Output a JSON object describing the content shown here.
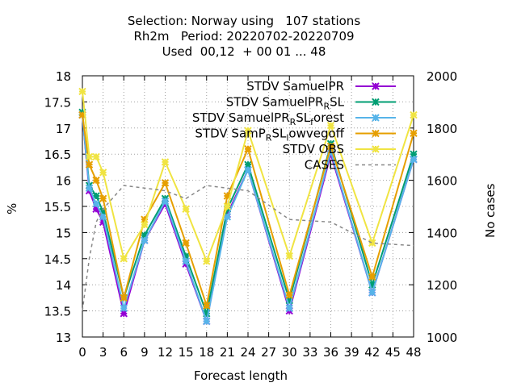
{
  "title_lines": [
    "Selection: Norway using   107 stations",
    "Rh2m   Period: 20220702-20220709",
    "Used  00,12  + 00 01 ... 48"
  ],
  "chart_data": {
    "type": "line",
    "title": "Selection: Norway using   107 stations / Rh2m   Period: 20220702-20220709 / Used  00,12  + 00 01 ... 48",
    "xlabel": "Forecast length",
    "ylabel": "%",
    "y2label": "No cases",
    "xlim": [
      0,
      48
    ],
    "ylim": [
      13,
      18
    ],
    "y2lim": [
      1000,
      2000
    ],
    "x_ticks": [
      "0",
      "3",
      "6",
      "9",
      "12",
      "15",
      "18",
      "21",
      "24",
      "27",
      "30",
      "33",
      "36",
      "39",
      "42",
      "45",
      "48"
    ],
    "y_ticks": [
      "13",
      "13.5",
      "14",
      "14.5",
      "15",
      "15.5",
      "16",
      "16.5",
      "17",
      "17.5",
      "18"
    ],
    "y2_ticks": [
      "1000",
      "1200",
      "1400",
      "1600",
      "1800",
      "2000"
    ],
    "grid": true,
    "legend_position": "top-right",
    "x": [
      0,
      1,
      2,
      3,
      6,
      9,
      12,
      15,
      18,
      21,
      24,
      30,
      36,
      42,
      48
    ],
    "series": [
      {
        "name": "STDV SamuelPR",
        "color": "#9400d3",
        "axis": "y",
        "values": [
          17.25,
          15.8,
          15.45,
          15.2,
          13.45,
          14.85,
          15.55,
          14.4,
          13.3,
          15.35,
          16.2,
          13.5,
          16.5,
          13.85,
          16.4
        ]
      },
      {
        "name": "STDV SamuelPR_RSL",
        "color": "#009e73",
        "axis": "y",
        "values": [
          17.3,
          15.9,
          15.7,
          15.4,
          13.75,
          14.95,
          15.65,
          14.55,
          13.45,
          15.45,
          16.3,
          13.7,
          16.7,
          14.0,
          16.5
        ]
      },
      {
        "name": "STDV SamuelPR_RSL_forest",
        "color": "#56b4e9",
        "axis": "y",
        "values": [
          17.25,
          15.85,
          15.55,
          15.3,
          13.55,
          14.85,
          15.6,
          14.45,
          13.3,
          15.3,
          16.2,
          13.55,
          16.55,
          13.85,
          16.4
        ]
      },
      {
        "name": "STDV SamP_RSL_lowvegoff",
        "color": "#e69f00",
        "axis": "y",
        "values": [
          17.25,
          16.3,
          16.0,
          15.65,
          13.75,
          15.25,
          15.95,
          14.8,
          13.6,
          15.7,
          16.6,
          13.8,
          16.65,
          14.15,
          16.9
        ]
      },
      {
        "name": "STDV OBS",
        "color": "#f0e442",
        "axis": "y",
        "values": [
          17.7,
          16.45,
          16.45,
          16.15,
          14.5,
          15.15,
          16.35,
          15.45,
          14.45,
          15.5,
          16.95,
          14.55,
          17.05,
          14.8,
          17.25
        ]
      },
      {
        "name": "CASES",
        "color": "#888888",
        "axis": "y2",
        "dashed": true,
        "values": [
          1100,
          1300,
          1440,
          1490,
          1580,
          1570,
          1560,
          1530,
          1580,
          1570,
          1560,
          1450,
          1440,
          1360,
          1350
        ]
      }
    ],
    "cases_x": [
      0,
      1,
      2,
      3,
      6,
      9,
      12,
      15,
      18,
      21,
      24,
      30,
      36,
      42,
      48
    ]
  }
}
